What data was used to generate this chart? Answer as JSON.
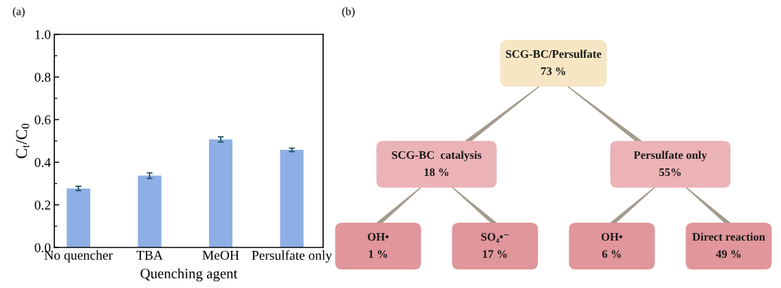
{
  "chart_data": [
    {
      "type": "bar",
      "title": "(a)",
      "xlabel": "Quenching agent",
      "ylabel": "C$_{t}$/C$_{0}$",
      "categories": [
        "No quencher",
        "TBA",
        "MeOH",
        "Persulfate only"
      ],
      "values": [
        0.277,
        0.337,
        0.507,
        0.458
      ],
      "errors": [
        0.01,
        0.013,
        0.012,
        0.008
      ],
      "color": "#8eaee6",
      "ylim": [
        0,
        1.0
      ],
      "yticks": [
        {
          "value": 0,
          "label": "0.0"
        },
        0.2,
        0.4,
        0.6,
        0.8,
        {
          "value": 1.0,
          "label": "1.0"
        }
      ]
    },
    {
      "type": "other",
      "title": "(b)",
      "categories": [
        "SCG-BC/Persulfate",
        "SCG-BC  catalysis",
        "Persulfate only",
        "OH•",
        "SO₄•⁻",
        "OH•",
        "Direct reaction"
      ],
      "values": [
        73,
        18,
        55,
        1,
        17,
        6,
        49
      ],
      "value_labels": [
        "73 %",
        "18 %",
        "55%",
        "1 %",
        "17 %",
        "6 %",
        "49 %"
      ],
      "colors": [
        "#f6e6c4",
        "#ecb3b7",
        "#ecb3b7",
        "#e0969b",
        "#e0969b",
        "#e0969b",
        "#e0969b"
      ]
    }
  ]
}
